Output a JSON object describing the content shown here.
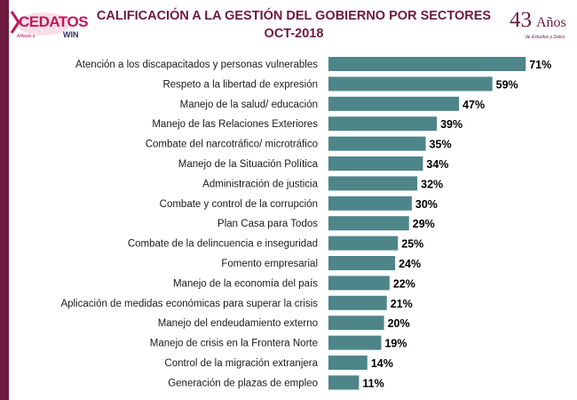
{
  "header": {
    "logo_text": "CEDATOS",
    "logo_affiliate": "Afiliado a",
    "logo_partner": "WIN",
    "anniversary_number": "43",
    "anniversary_word": "Años",
    "anniversary_sub": "de Estudios y Datos"
  },
  "colors": {
    "bar": "#4e8589",
    "title": "#6d1a3e",
    "sidebar": "#6d1a3e"
  },
  "chart_data": {
    "type": "bar",
    "orientation": "horizontal",
    "title": "CALIFICACIÓN A LA GESTIÓN DEL GOBIERNO POR SECTORES",
    "subtitle": "OCT-2018",
    "xlabel": "",
    "ylabel": "",
    "xlim": [
      0,
      100
    ],
    "grid": false,
    "categories": [
      "Atención a los discapacitados y personas vulnerables",
      "Respeto a la libertad de expresión",
      "Manejo de la salud/ educación",
      "Manejo de las Relaciones Exteriores",
      "Combate del narcotráfico/ microtráfico",
      "Manejo de la Situación Política",
      "Administración de justicia",
      "Combate y control de la corrupción",
      "Plan Casa para Todos",
      "Combate de la delincuencia e inseguridad",
      "Fomento empresarial",
      "Manejo de la economía del país",
      "Aplicación de medidas económicas para superar la crisis",
      "Manejo del endeudamiento externo",
      "Manejo de crisis en la Frontera Norte",
      "Control de la migración extranjera",
      "Generación de plazas de empleo"
    ],
    "values": [
      71,
      59,
      47,
      39,
      35,
      34,
      32,
      30,
      29,
      25,
      24,
      22,
      21,
      20,
      19,
      14,
      11
    ],
    "value_labels": [
      "71%",
      "59%",
      "47%",
      "39%",
      "35%",
      "34%",
      "32%",
      "30%",
      "29%",
      "25%",
      "24%",
      "22%",
      "21%",
      "20%",
      "19%",
      "14%",
      "11%"
    ]
  }
}
